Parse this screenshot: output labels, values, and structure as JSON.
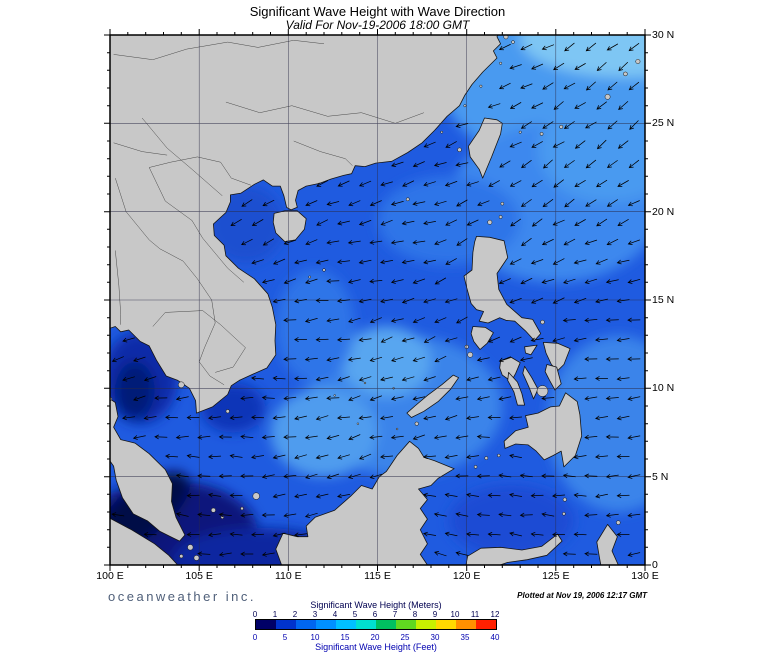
{
  "title": "Significant Wave Height with Wave Direction",
  "subtitle": "Valid For Nov-19-2006 18:00 GMT",
  "branding": "oceanweather inc.",
  "plotted_at": "Plotted at Nov 19, 2006 12:17 GMT",
  "axes": {
    "x_labels": [
      "100 E",
      "105 E",
      "110 E",
      "115 E",
      "120 E",
      "125 E",
      "130 E"
    ],
    "y_labels": [
      "30 N",
      "25 N",
      "20 N",
      "15 N",
      "10 N",
      "5 N",
      "0"
    ]
  },
  "legend": {
    "meters_title": "Significant Wave Height (Meters)",
    "feet_title": "Significant Wave Height (Feet)",
    "meters_ticks": [
      "0",
      "1",
      "2",
      "3",
      "4",
      "5",
      "6",
      "7",
      "8",
      "9",
      "10",
      "11",
      "12"
    ],
    "feet_ticks": [
      "0",
      "5",
      "10",
      "15",
      "20",
      "25",
      "30",
      "35",
      "40"
    ],
    "colors": [
      "#000066",
      "#0033cc",
      "#0066f0",
      "#0090ff",
      "#00c0ff",
      "#00e0d0",
      "#00c060",
      "#60d820",
      "#c8f000",
      "#ffd800",
      "#ff9000",
      "#ff2000"
    ]
  },
  "map": {
    "lon_min": 100,
    "lon_max": 130,
    "lat_min": 0,
    "lat_max": 30,
    "grid_step_deg": 5,
    "colors": {
      "ocean_base": "#1f5be0",
      "land": "#c8c8c8",
      "coast": "#151515",
      "grid": "#2a2a46",
      "arrow": "#000000",
      "frame": "#000000",
      "river": "#2b2b2b"
    }
  }
}
